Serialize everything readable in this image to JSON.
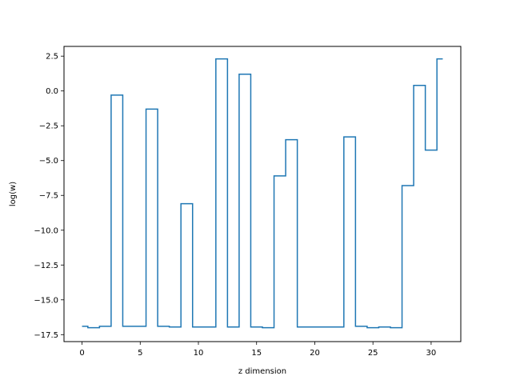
{
  "chart_data": {
    "type": "line",
    "drawstyle": "steps-mid",
    "title": "",
    "xlabel": "z dimension",
    "ylabel": "log(w)",
    "xlim": [
      -1.55,
      32.55
    ],
    "ylim": [
      -18.0,
      3.2
    ],
    "grid": false,
    "legend": "none",
    "x_ticks": [
      0,
      5,
      10,
      15,
      20,
      25,
      30
    ],
    "x_tick_labels": [
      "0",
      "5",
      "10",
      "15",
      "20",
      "25",
      "30"
    ],
    "y_ticks": [
      -17.5,
      -15.0,
      -12.5,
      -10.0,
      -7.5,
      -5.0,
      -2.5,
      0.0,
      2.5
    ],
    "y_tick_labels": [
      "−17.5",
      "−15.0",
      "−12.5",
      "−10.0",
      "−7.5",
      "−5.0",
      "−2.5",
      "0.0",
      "2.5"
    ],
    "series": [
      {
        "color": "#1f77b4",
        "x": [
          0,
          1,
          2,
          3,
          4,
          5,
          6,
          7,
          8,
          9,
          10,
          11,
          12,
          13,
          14,
          15,
          16,
          17,
          18,
          19,
          20,
          21,
          22,
          23,
          24,
          25,
          26,
          27,
          28,
          29,
          30,
          31
        ],
        "values": [
          -16.9,
          -17.0,
          -16.9,
          -0.3,
          -16.9,
          -16.9,
          -1.3,
          -16.9,
          -16.95,
          -8.1,
          -16.95,
          -16.95,
          2.3,
          -16.95,
          1.2,
          -16.95,
          -17.0,
          -6.1,
          -3.5,
          -16.95,
          -16.95,
          -16.95,
          -16.95,
          -3.3,
          -16.9,
          -17.0,
          -16.95,
          -17.0,
          -6.8,
          0.4,
          -4.25,
          2.3
        ]
      }
    ]
  }
}
